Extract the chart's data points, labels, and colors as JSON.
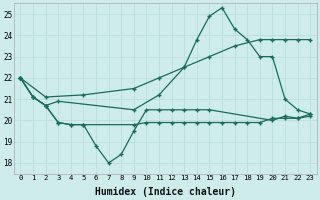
{
  "xlabel": "Humidex (Indice chaleur)",
  "bg_color": "#ceecea",
  "line_color": "#1a6b5a",
  "grid_color": "#b8dcd8",
  "xlim": [
    -0.5,
    23.5
  ],
  "ylim": [
    17.5,
    25.5
  ],
  "xticks": [
    0,
    1,
    2,
    3,
    4,
    5,
    6,
    7,
    8,
    9,
    10,
    11,
    12,
    13,
    14,
    15,
    16,
    17,
    18,
    19,
    20,
    21,
    22,
    23
  ],
  "yticks": [
    18,
    19,
    20,
    21,
    22,
    23,
    24,
    25
  ],
  "line_wavy_x": [
    0,
    1,
    2,
    3,
    4,
    5,
    6,
    7,
    8,
    9,
    10,
    11,
    12,
    13,
    14,
    15,
    20,
    21,
    22,
    23
  ],
  "line_wavy_y": [
    22.0,
    21.1,
    20.7,
    19.9,
    19.8,
    19.8,
    18.8,
    18.0,
    18.4,
    19.5,
    20.5,
    20.5,
    20.5,
    20.5,
    20.5,
    20.5,
    20.0,
    20.2,
    20.1,
    20.2
  ],
  "line_flat_x": [
    0,
    1,
    2,
    3,
    4,
    5,
    9,
    10,
    11,
    12,
    13,
    14,
    15,
    16,
    17,
    18,
    19,
    20,
    21,
    22,
    23
  ],
  "line_flat_y": [
    22.0,
    21.1,
    20.7,
    19.9,
    19.8,
    19.8,
    19.8,
    19.9,
    19.9,
    19.9,
    19.9,
    19.9,
    19.9,
    19.9,
    19.9,
    19.9,
    19.9,
    20.1,
    20.1,
    20.1,
    20.3
  ],
  "line_diag_x": [
    0,
    2,
    5,
    9,
    11,
    13,
    15,
    17,
    19,
    20,
    21,
    22,
    23
  ],
  "line_diag_y": [
    22.0,
    21.1,
    21.2,
    21.5,
    22.0,
    22.5,
    23.0,
    23.5,
    23.8,
    23.8,
    23.8,
    23.8,
    23.8
  ],
  "line_peak_x": [
    0,
    1,
    2,
    3,
    9,
    11,
    13,
    14,
    15,
    16,
    17,
    18,
    19,
    20,
    21,
    22,
    23
  ],
  "line_peak_y": [
    22.0,
    21.1,
    20.7,
    20.9,
    20.5,
    21.2,
    22.5,
    23.8,
    24.9,
    25.3,
    24.3,
    23.8,
    23.0,
    23.0,
    21.0,
    20.5,
    20.3
  ]
}
